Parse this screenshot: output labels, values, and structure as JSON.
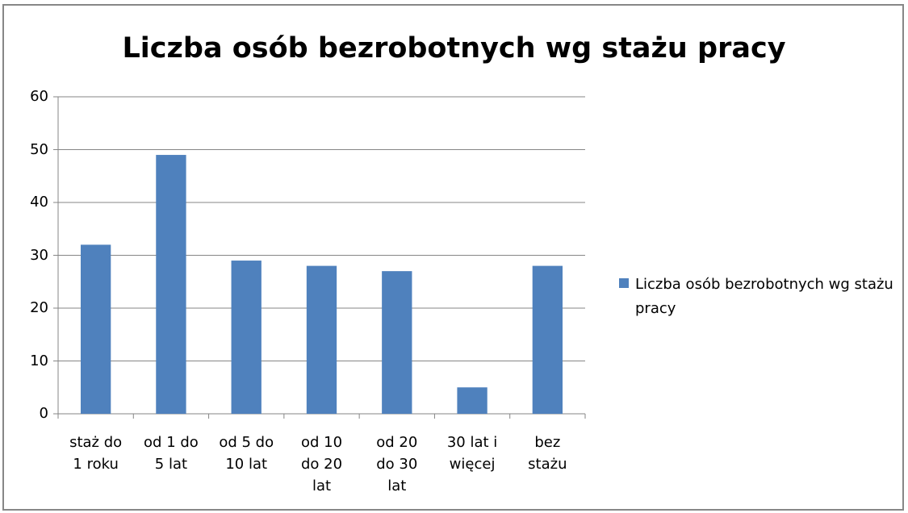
{
  "chart_data": {
    "type": "bar",
    "title": "Liczba osób bezrobotnych wg stażu pracy",
    "categories": [
      "staż do\n1 roku",
      "od 1 do\n5 lat",
      "od 5 do\n10 lat",
      "od 10\ndo 20\nlat",
      "od 20\ndo 30\nlat",
      "30 lat i\nwięcej",
      "bez\nstażu"
    ],
    "series": [
      {
        "name": "Liczba osób bezrobotnych wg stażu pracy",
        "color": "#4f81bd",
        "values": [
          32,
          49,
          29,
          28,
          27,
          5,
          28
        ]
      }
    ],
    "ylim": [
      0,
      60
    ],
    "yticks": [
      0,
      10,
      20,
      30,
      40,
      50,
      60
    ],
    "grid": true,
    "legend": "right"
  }
}
